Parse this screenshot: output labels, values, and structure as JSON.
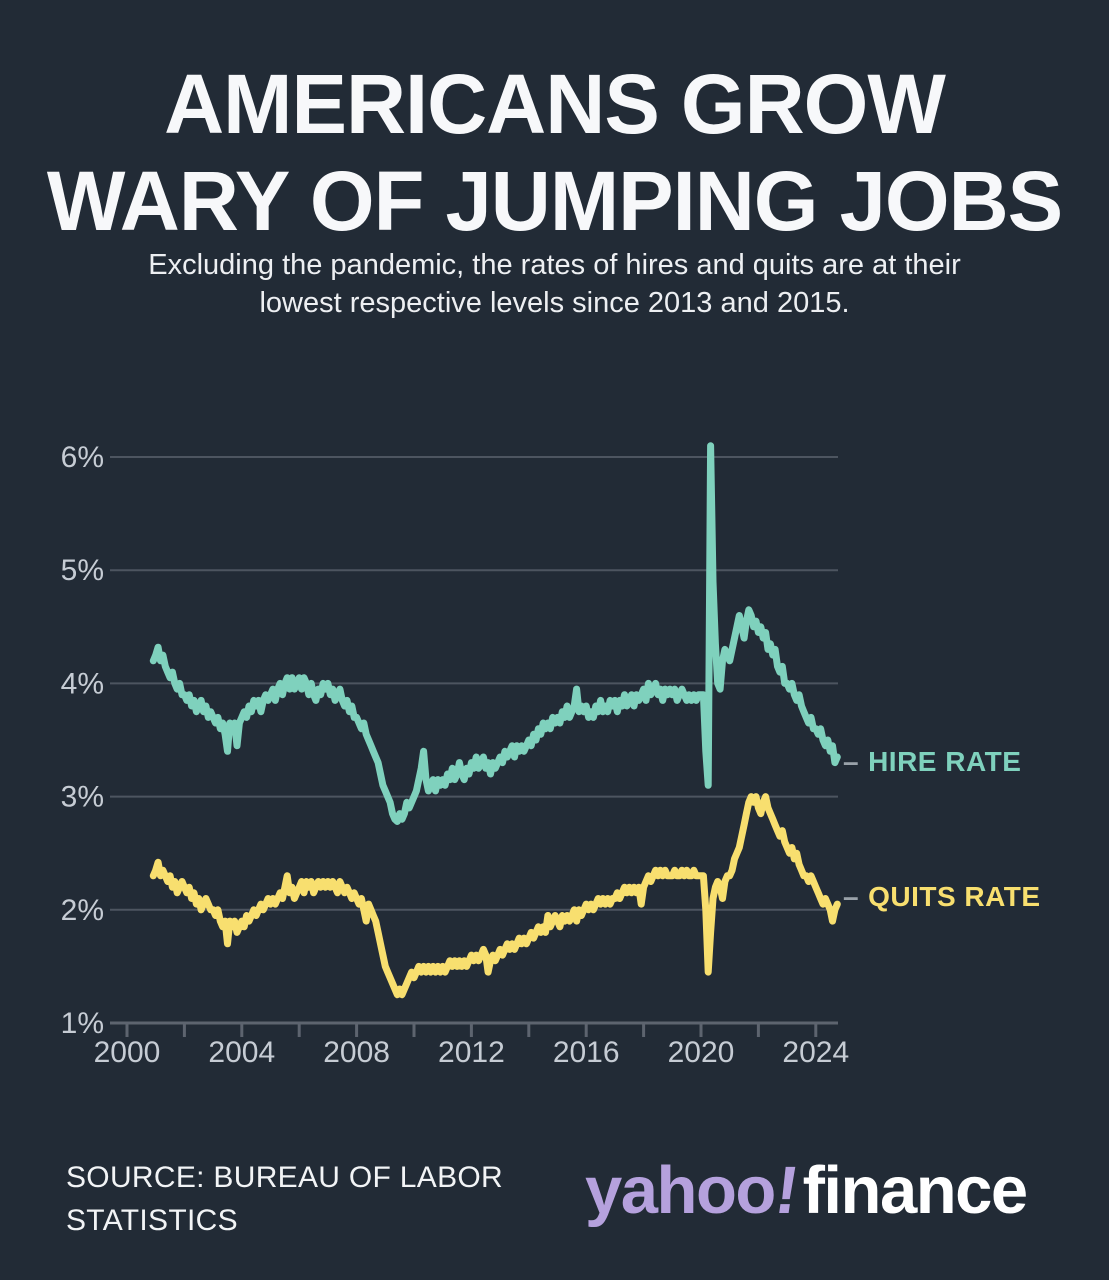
{
  "title": {
    "line1": "AMERICANS GROW",
    "line2": "WARY OF JUMPING JOBS"
  },
  "subtitle": {
    "line1": "Excluding the pandemic, the rates of hires and quits are at their",
    "line2": "lowest respective levels since 2013 and 2015."
  },
  "source": {
    "line1": "SOURCE: BUREAU OF LABOR",
    "line2": "STATISTICS"
  },
  "logo": {
    "yahoo": "yahoo",
    "bang": "!",
    "finance": "finance",
    "yahoo_color": "#b5a1dd",
    "finance_color": "#ffffff"
  },
  "colors": {
    "background": "#222b36",
    "gridline": "#4d5560",
    "axis_line": "#5d646f",
    "tick_label": "#c6ccd4",
    "title_text": "#f7f8fa",
    "hire_line": "#7fd1bd",
    "quits_line": "#f8df6f",
    "label_dash": "#9aa2aa"
  },
  "chart_data": {
    "type": "line",
    "title": "",
    "xlabel": "",
    "ylabel": "",
    "grid": true,
    "legend_position": "right-of-line-end",
    "x_start_year": 2000.9167,
    "points_per_year": 12,
    "xlim": [
      2000,
      2025
    ],
    "ylim": [
      1,
      6.3
    ],
    "x_axis": {
      "minor_tick_years": [
        2000,
        2002,
        2004,
        2006,
        2008,
        2010,
        2012,
        2014,
        2016,
        2018,
        2020,
        2022,
        2024
      ],
      "label_years": [
        2000,
        2004,
        2008,
        2012,
        2016,
        2020,
        2024
      ],
      "labels": [
        "2000",
        "2004",
        "2008",
        "2012",
        "2016",
        "2020",
        "2024"
      ]
    },
    "y_axis": {
      "ticks": [
        1,
        2,
        3,
        4,
        5,
        6
      ],
      "labels": [
        "1%",
        "2%",
        "3%",
        "4%",
        "5%",
        "6%"
      ]
    },
    "series": [
      {
        "name": "HIRE RATE",
        "dash": "–",
        "color": "#7fd1bd",
        "values": [
          4.2,
          4.25,
          4.32,
          4.2,
          4.25,
          4.15,
          4.1,
          4.05,
          4.1,
          4.0,
          3.95,
          4.0,
          3.9,
          3.9,
          3.85,
          3.9,
          3.8,
          3.85,
          3.75,
          3.8,
          3.85,
          3.75,
          3.8,
          3.7,
          3.75,
          3.7,
          3.65,
          3.7,
          3.6,
          3.65,
          3.55,
          3.4,
          3.65,
          3.6,
          3.65,
          3.45,
          3.65,
          3.7,
          3.75,
          3.7,
          3.8,
          3.75,
          3.85,
          3.8,
          3.85,
          3.75,
          3.85,
          3.9,
          3.85,
          3.9,
          3.95,
          3.85,
          3.95,
          4.0,
          3.9,
          4.0,
          4.05,
          3.95,
          4.05,
          3.95,
          4.0,
          4.05,
          3.95,
          4.05,
          4.0,
          3.9,
          4.0,
          3.9,
          3.85,
          3.95,
          3.9,
          4.0,
          3.95,
          4.0,
          3.9,
          3.95,
          3.85,
          3.9,
          3.95,
          3.85,
          3.8,
          3.85,
          3.75,
          3.8,
          3.7,
          3.7,
          3.65,
          3.6,
          3.65,
          3.55,
          3.5,
          3.45,
          3.4,
          3.35,
          3.3,
          3.2,
          3.1,
          3.05,
          3.0,
          2.95,
          2.85,
          2.8,
          2.78,
          2.85,
          2.8,
          2.85,
          2.95,
          2.9,
          2.95,
          3.0,
          3.05,
          3.15,
          3.25,
          3.4,
          3.15,
          3.05,
          3.1,
          3.15,
          3.05,
          3.15,
          3.1,
          3.15,
          3.1,
          3.2,
          3.15,
          3.25,
          3.15,
          3.2,
          3.3,
          3.2,
          3.15,
          3.25,
          3.2,
          3.3,
          3.25,
          3.35,
          3.25,
          3.3,
          3.35,
          3.25,
          3.3,
          3.2,
          3.3,
          3.25,
          3.3,
          3.35,
          3.3,
          3.4,
          3.35,
          3.4,
          3.45,
          3.35,
          3.45,
          3.4,
          3.45,
          3.4,
          3.45,
          3.5,
          3.45,
          3.55,
          3.5,
          3.6,
          3.55,
          3.65,
          3.6,
          3.65,
          3.6,
          3.7,
          3.65,
          3.7,
          3.65,
          3.75,
          3.7,
          3.8,
          3.7,
          3.75,
          3.8,
          3.95,
          3.75,
          3.8,
          3.75,
          3.8,
          3.7,
          3.75,
          3.7,
          3.8,
          3.75,
          3.85,
          3.75,
          3.8,
          3.75,
          3.85,
          3.8,
          3.85,
          3.75,
          3.85,
          3.8,
          3.9,
          3.8,
          3.85,
          3.9,
          3.8,
          3.9,
          3.85,
          3.9,
          3.95,
          3.85,
          4.0,
          3.9,
          3.95,
          4.0,
          3.9,
          3.95,
          3.85,
          3.95,
          3.9,
          3.95,
          3.9,
          3.95,
          3.85,
          3.9,
          3.95,
          3.9,
          3.85,
          3.9,
          3.85,
          3.9,
          3.85,
          3.9,
          3.9,
          3.9,
          3.4,
          3.1,
          6.1,
          4.9,
          4.35,
          4.0,
          3.95,
          4.2,
          4.3,
          4.25,
          4.2,
          4.3,
          4.4,
          4.5,
          4.6,
          4.5,
          4.4,
          4.55,
          4.65,
          4.6,
          4.5,
          4.55,
          4.45,
          4.5,
          4.4,
          4.45,
          4.3,
          4.35,
          4.25,
          4.3,
          4.15,
          4.1,
          4.15,
          4.0,
          4.0,
          3.95,
          4.0,
          3.9,
          3.85,
          3.9,
          3.8,
          3.75,
          3.7,
          3.65,
          3.7,
          3.6,
          3.6,
          3.55,
          3.6,
          3.5,
          3.45,
          3.5,
          3.4,
          3.45,
          3.3,
          3.35
        ]
      },
      {
        "name": "QUITS RATE",
        "dash": "–",
        "color": "#f8df6f",
        "values": [
          2.3,
          2.35,
          2.42,
          2.3,
          2.35,
          2.3,
          2.25,
          2.3,
          2.2,
          2.25,
          2.15,
          2.2,
          2.25,
          2.2,
          2.15,
          2.2,
          2.1,
          2.15,
          2.05,
          2.1,
          2.0,
          2.05,
          2.1,
          2.05,
          2.0,
          2.0,
          1.95,
          2.0,
          1.9,
          1.85,
          1.9,
          1.7,
          1.9,
          1.85,
          1.9,
          1.8,
          1.85,
          1.9,
          1.85,
          1.95,
          1.9,
          1.95,
          2.0,
          1.95,
          2.0,
          2.05,
          2.0,
          2.05,
          2.1,
          2.05,
          2.1,
          2.05,
          2.1,
          2.15,
          2.1,
          2.2,
          2.3,
          2.15,
          2.2,
          2.1,
          2.15,
          2.2,
          2.25,
          2.15,
          2.25,
          2.2,
          2.25,
          2.15,
          2.2,
          2.25,
          2.2,
          2.25,
          2.2,
          2.25,
          2.2,
          2.25,
          2.2,
          2.15,
          2.25,
          2.2,
          2.15,
          2.2,
          2.15,
          2.1,
          2.15,
          2.1,
          2.05,
          2.1,
          2.0,
          1.9,
          2.05,
          2.0,
          1.95,
          1.9,
          1.8,
          1.7,
          1.6,
          1.5,
          1.45,
          1.4,
          1.35,
          1.3,
          1.25,
          1.3,
          1.25,
          1.3,
          1.35,
          1.4,
          1.45,
          1.4,
          1.45,
          1.5,
          1.45,
          1.5,
          1.45,
          1.5,
          1.45,
          1.5,
          1.45,
          1.5,
          1.45,
          1.5,
          1.45,
          1.5,
          1.55,
          1.5,
          1.55,
          1.5,
          1.55,
          1.5,
          1.55,
          1.5,
          1.55,
          1.6,
          1.55,
          1.6,
          1.55,
          1.6,
          1.65,
          1.6,
          1.45,
          1.55,
          1.6,
          1.55,
          1.6,
          1.65,
          1.6,
          1.65,
          1.7,
          1.65,
          1.7,
          1.65,
          1.7,
          1.75,
          1.7,
          1.75,
          1.7,
          1.75,
          1.8,
          1.75,
          1.8,
          1.85,
          1.8,
          1.85,
          1.8,
          1.95,
          1.85,
          1.9,
          1.95,
          1.9,
          1.85,
          1.95,
          1.9,
          1.95,
          1.9,
          1.95,
          2.0,
          1.9,
          2.0,
          1.95,
          2.0,
          2.05,
          2.0,
          2.05,
          2.0,
          2.05,
          2.1,
          2.05,
          2.1,
          2.05,
          2.1,
          2.05,
          2.1,
          2.1,
          2.15,
          2.1,
          2.15,
          2.2,
          2.15,
          2.2,
          2.15,
          2.2,
          2.15,
          2.2,
          2.05,
          2.2,
          2.25,
          2.3,
          2.25,
          2.3,
          2.35,
          2.3,
          2.35,
          2.3,
          2.35,
          2.3,
          2.3,
          2.3,
          2.35,
          2.3,
          2.3,
          2.35,
          2.3,
          2.35,
          2.3,
          2.3,
          2.35,
          2.3,
          2.3,
          2.3,
          2.3,
          2.0,
          1.45,
          1.8,
          2.1,
          2.2,
          2.25,
          2.2,
          2.1,
          2.25,
          2.3,
          2.3,
          2.35,
          2.45,
          2.5,
          2.55,
          2.65,
          2.75,
          2.85,
          2.95,
          3.0,
          2.95,
          3.0,
          2.9,
          2.85,
          2.95,
          3.0,
          2.9,
          2.85,
          2.8,
          2.75,
          2.7,
          2.65,
          2.7,
          2.6,
          2.55,
          2.5,
          2.55,
          2.45,
          2.5,
          2.4,
          2.35,
          2.3,
          2.3,
          2.25,
          2.3,
          2.25,
          2.2,
          2.15,
          2.1,
          2.05,
          2.1,
          2.05,
          2.0,
          1.9,
          2.0,
          2.05
        ]
      }
    ]
  }
}
